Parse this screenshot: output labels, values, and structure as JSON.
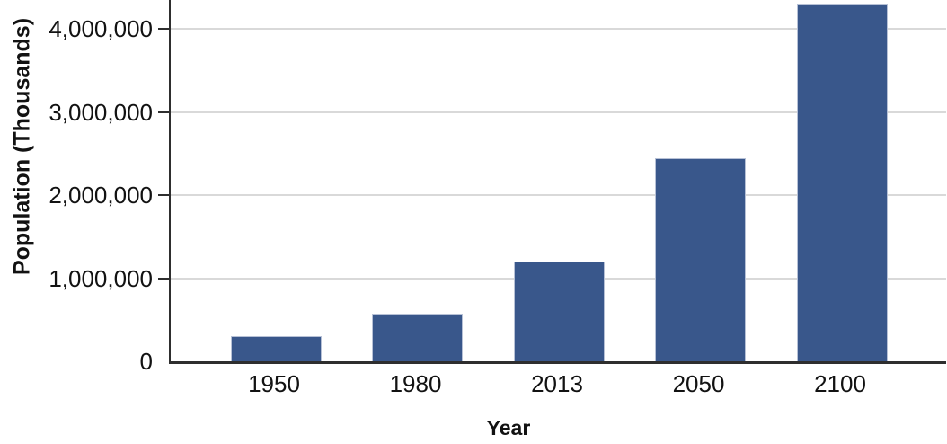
{
  "chart_data": {
    "type": "bar",
    "categories": [
      "1950",
      "1980",
      "2013",
      "2050",
      "2100"
    ],
    "values": [
      300000,
      570000,
      1200000,
      2450000,
      4300000
    ],
    "title": "",
    "xlabel": "Year",
    "ylabel": "Population (Thousands)",
    "ylim": [
      0,
      4350000
    ],
    "yticks": [
      0,
      1000000,
      2000000,
      3000000,
      4000000
    ],
    "ytick_labels": [
      "0",
      "1,000,000",
      "2,000,000",
      "3,000,000",
      "4,000,000"
    ],
    "grid": true,
    "legend": "none",
    "colors": {
      "bar_fill": "#39578B",
      "bar_edge": "#b7c1d6",
      "axis": "#2e2e2e",
      "gridline": "#d9d9d9",
      "text": "#121212"
    }
  }
}
